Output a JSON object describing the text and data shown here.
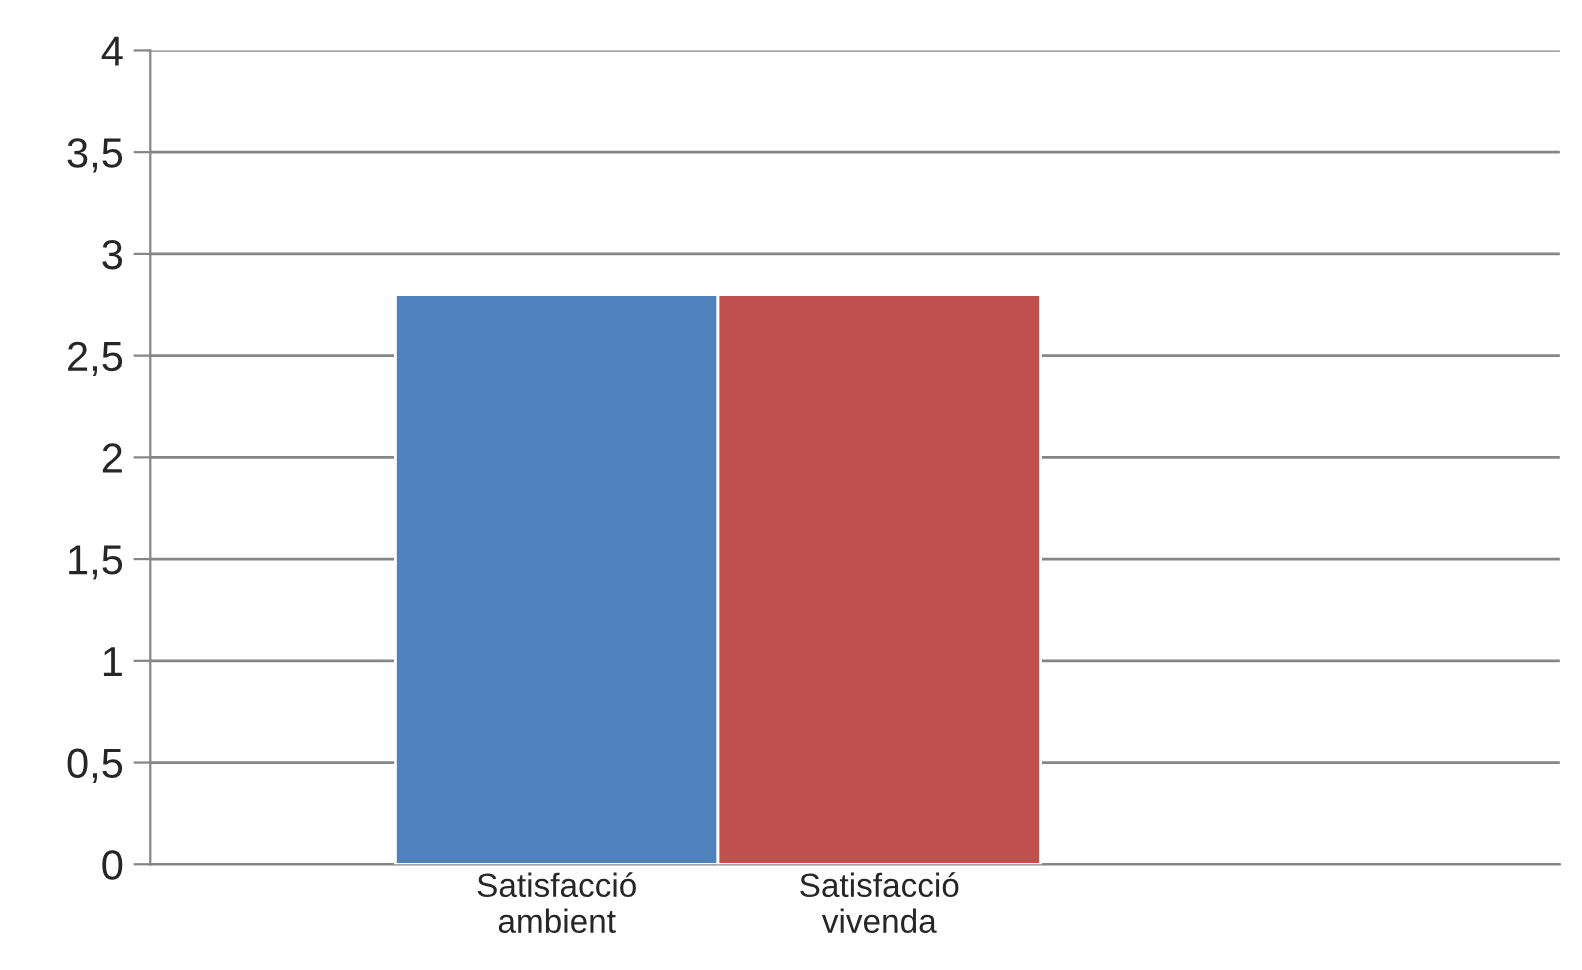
{
  "chart_data": {
    "type": "bar",
    "categories": [
      "Satisfacció ambient",
      "Satisfacció vivenda"
    ],
    "values": [
      2.8,
      2.8
    ],
    "colors": [
      "#4f81bd",
      "#c0504d"
    ],
    "ylim": [
      0,
      4
    ],
    "yticks": [
      0,
      {
        "value": 0.5,
        "label": "0,5"
      },
      1,
      {
        "value": 1.5,
        "label": "1,5"
      },
      2,
      {
        "value": 2.5,
        "label": "2,5"
      },
      3,
      {
        "value": 3.5,
        "label": "3,5"
      },
      4
    ],
    "grid": "y",
    "legend": false
  }
}
